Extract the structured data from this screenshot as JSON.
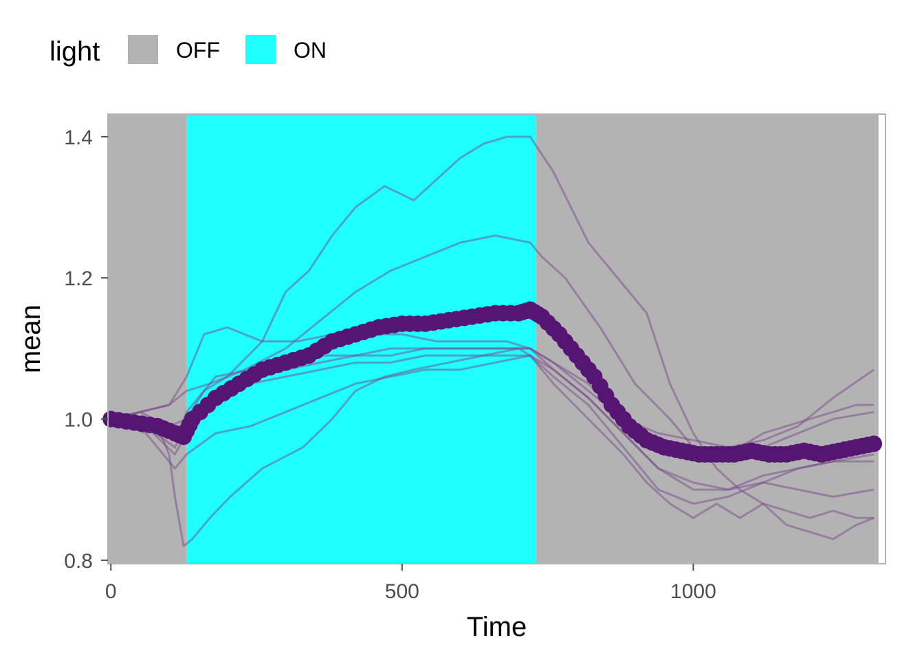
{
  "chart_data": {
    "type": "line",
    "xlabel": "Time",
    "ylabel": "mean",
    "xlim": [
      -5,
      1330
    ],
    "ylim": [
      0.795,
      1.432
    ],
    "x_ticks": [
      0,
      500,
      1000
    ],
    "x_tick_labels": [
      "0",
      "500",
      "1000"
    ],
    "y_ticks": [
      0.8,
      1.0,
      1.2,
      1.4
    ],
    "y_tick_labels": [
      "0.8",
      "1.0",
      "1.2",
      "1.4"
    ],
    "legend": {
      "title": "light",
      "position": "top-left",
      "entries": [
        {
          "label": "OFF",
          "color": "#b3b3b3"
        },
        {
          "label": "ON",
          "color": "#1fffff"
        }
      ]
    },
    "regions": [
      {
        "light": "OFF",
        "x_start": -5,
        "x_end": 130
      },
      {
        "light": "ON",
        "x_start": 130,
        "x_end": 730
      },
      {
        "light": "OFF",
        "x_start": 730,
        "x_end": 1318
      }
    ],
    "colors": {
      "mean_line": "#561573",
      "individual_lines": "#7a4a8c",
      "panel_border": "#b3b3b3"
    },
    "series": [
      {
        "x": [
          0,
          40,
          80,
          100,
          110,
          125,
          140,
          170,
          205,
          260,
          330,
          380,
          420,
          470,
          520,
          580,
          640,
          700,
          720,
          730,
          760,
          820,
          880,
          920,
          960,
          1000,
          1040,
          1080,
          1120,
          1160,
          1200,
          1240,
          1280,
          1310
        ],
        "y": [
          1.0,
          1.0,
          0.99,
          0.95,
          0.89,
          0.82,
          0.83,
          0.86,
          0.89,
          0.93,
          0.96,
          1.0,
          1.04,
          1.06,
          1.07,
          1.08,
          1.09,
          1.1,
          1.09,
          1.08,
          1.05,
          1.0,
          0.95,
          0.91,
          0.88,
          0.86,
          0.88,
          0.86,
          0.88,
          0.85,
          0.84,
          0.83,
          0.85,
          0.86
        ]
      },
      {
        "x": [
          0,
          50,
          100,
          130,
          160,
          200,
          260,
          300,
          340,
          380,
          420,
          470,
          520,
          560,
          600,
          640,
          680,
          720,
          760,
          820,
          880,
          920,
          960,
          1000,
          1040,
          1080,
          1120,
          1160,
          1200,
          1240,
          1280,
          1310
        ],
        "y": [
          1.0,
          1.01,
          0.99,
          1.0,
          1.04,
          1.06,
          1.11,
          1.18,
          1.21,
          1.26,
          1.3,
          1.33,
          1.31,
          1.34,
          1.37,
          1.39,
          1.4,
          1.4,
          1.35,
          1.25,
          1.19,
          1.15,
          1.05,
          0.98,
          0.93,
          0.9,
          0.88,
          0.87,
          0.86,
          0.87,
          0.86,
          0.86
        ]
      },
      {
        "x": [
          0,
          50,
          100,
          130,
          170,
          230,
          300,
          360,
          420,
          480,
          540,
          600,
          660,
          720,
          740,
          780,
          840,
          900,
          960,
          1000,
          1040,
          1080,
          1120,
          1160,
          1200,
          1240,
          1280,
          1310
        ],
        "y": [
          1.0,
          1.01,
          1.02,
          1.04,
          1.05,
          1.07,
          1.1,
          1.14,
          1.18,
          1.21,
          1.23,
          1.25,
          1.26,
          1.25,
          1.23,
          1.2,
          1.13,
          1.05,
          1.0,
          0.96,
          0.95,
          0.96,
          0.98,
          0.99,
          1.0,
          1.01,
          1.02,
          1.02
        ]
      },
      {
        "x": [
          0,
          50,
          100,
          130,
          160,
          200,
          260,
          320,
          380,
          440,
          500,
          560,
          620,
          680,
          720,
          760,
          820,
          880,
          940,
          1000,
          1060,
          1120,
          1180,
          1240,
          1310
        ],
        "y": [
          1.0,
          1.01,
          1.02,
          1.06,
          1.12,
          1.13,
          1.11,
          1.11,
          1.12,
          1.12,
          1.12,
          1.11,
          1.11,
          1.11,
          1.1,
          1.08,
          1.05,
          1.0,
          0.98,
          0.97,
          0.96,
          0.97,
          0.99,
          1.03,
          1.07
        ]
      },
      {
        "x": [
          0,
          60,
          110,
          130,
          180,
          240,
          300,
          360,
          420,
          480,
          540,
          600,
          660,
          720,
          760,
          820,
          880,
          940,
          1000,
          1060,
          1120,
          1180,
          1240,
          1310
        ],
        "y": [
          1.0,
          1.0,
          0.97,
          1.01,
          1.06,
          1.07,
          1.08,
          1.09,
          1.09,
          1.1,
          1.1,
          1.1,
          1.1,
          1.1,
          1.08,
          1.04,
          1.0,
          0.96,
          0.95,
          0.95,
          0.96,
          0.98,
          1.0,
          1.01
        ]
      },
      {
        "x": [
          0,
          60,
          110,
          130,
          180,
          240,
          300,
          360,
          420,
          480,
          540,
          600,
          660,
          720,
          760,
          820,
          880,
          940,
          1000,
          1060,
          1120,
          1180,
          1240,
          1310
        ],
        "y": [
          1.0,
          0.99,
          0.96,
          0.99,
          1.04,
          1.06,
          1.07,
          1.08,
          1.09,
          1.09,
          1.1,
          1.1,
          1.1,
          1.1,
          1.07,
          1.03,
          0.98,
          0.93,
          0.91,
          0.9,
          0.91,
          0.93,
          0.94,
          0.95
        ]
      },
      {
        "x": [
          0,
          60,
          110,
          130,
          180,
          240,
          300,
          360,
          420,
          480,
          540,
          600,
          660,
          720,
          760,
          820,
          880,
          940,
          1000,
          1060,
          1120,
          1180,
          1240,
          1310
        ],
        "y": [
          1.0,
          0.99,
          0.95,
          0.98,
          1.03,
          1.05,
          1.06,
          1.07,
          1.08,
          1.08,
          1.09,
          1.09,
          1.09,
          1.09,
          1.06,
          1.02,
          0.96,
          0.9,
          0.88,
          0.89,
          0.91,
          0.9,
          0.89,
          0.9
        ]
      },
      {
        "x": [
          0,
          60,
          110,
          130,
          180,
          240,
          300,
          360,
          420,
          480,
          540,
          600,
          660,
          720,
          760,
          820,
          880,
          940,
          1000,
          1060,
          1120,
          1180,
          1240,
          1310
        ],
        "y": [
          1.0,
          0.98,
          0.93,
          0.95,
          0.98,
          0.99,
          1.01,
          1.03,
          1.05,
          1.06,
          1.07,
          1.07,
          1.08,
          1.09,
          1.07,
          1.03,
          0.98,
          0.93,
          0.9,
          0.9,
          0.92,
          0.93,
          0.94,
          0.94
        ]
      },
      {
        "x": [
          0,
          40,
          80,
          110,
          125,
          140,
          180,
          220,
          260,
          300,
          340,
          380,
          420,
          460,
          500,
          540,
          580,
          620,
          660,
          700,
          720,
          740,
          770,
          800,
          830,
          860,
          890,
          920,
          950,
          980,
          1010,
          1040,
          1070,
          1100,
          1130,
          1160,
          1190,
          1220,
          1250,
          1280,
          1310
        ],
        "y": [
          1.0,
          0.995,
          0.99,
          0.98,
          0.975,
          1.0,
          1.03,
          1.05,
          1.07,
          1.08,
          1.09,
          1.11,
          1.12,
          1.13,
          1.135,
          1.135,
          1.14,
          1.145,
          1.15,
          1.15,
          1.155,
          1.145,
          1.12,
          1.09,
          1.06,
          1.02,
          0.99,
          0.97,
          0.96,
          0.955,
          0.95,
          0.95,
          0.95,
          0.955,
          0.95,
          0.95,
          0.955,
          0.95,
          0.955,
          0.96,
          0.965
        ],
        "role": "mean"
      }
    ]
  }
}
